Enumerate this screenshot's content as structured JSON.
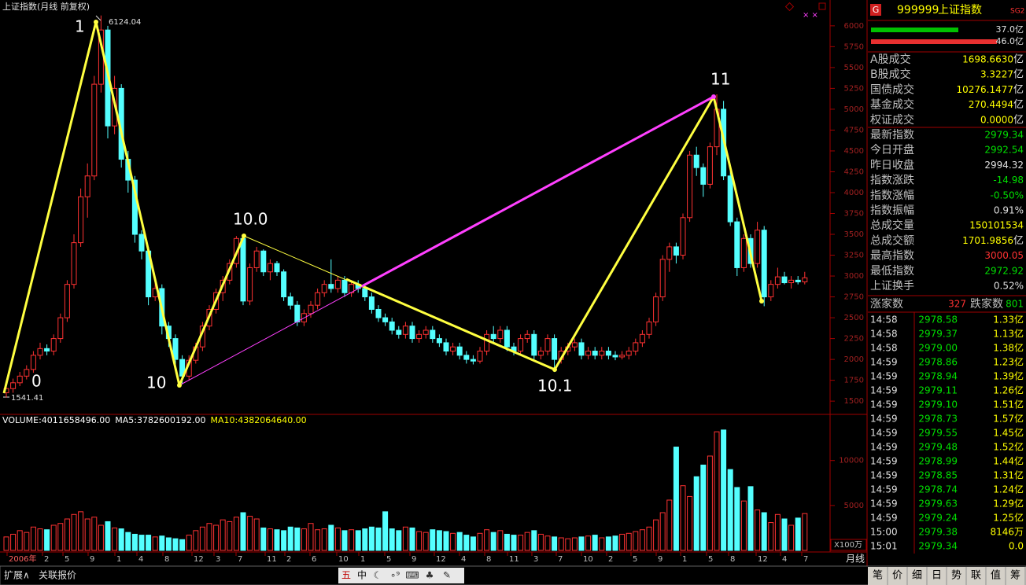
{
  "chart_data": [
    {
      "type": "candlestick",
      "title": "上证指数(月线 前复权)",
      "x_labels": [
        "2006年",
        "2",
        "5",
        "9",
        "1",
        "4",
        "8",
        "12",
        "3",
        "7",
        "11",
        "2",
        "6",
        "10",
        "1",
        "5",
        "9",
        "12",
        "4",
        "8",
        "11",
        "3",
        "7",
        "10",
        "2",
        "5",
        "9",
        "1",
        "5",
        "8",
        "12",
        "4",
        "7"
      ],
      "candles": [
        [
          1600,
          1700,
          1541.41,
          1650
        ],
        [
          1650,
          1770,
          1600,
          1720
        ],
        [
          1720,
          1850,
          1680,
          1800
        ],
        [
          1800,
          1930,
          1760,
          1880
        ],
        [
          1880,
          2100,
          1840,
          2050
        ],
        [
          2050,
          2200,
          2000,
          2130
        ],
        [
          2130,
          2180,
          2050,
          2100
        ],
        [
          2100,
          2300,
          2050,
          2250
        ],
        [
          2250,
          2550,
          2200,
          2500
        ],
        [
          2500,
          2950,
          2450,
          2900
        ],
        [
          2900,
          3500,
          2850,
          3400
        ],
        [
          3400,
          4050,
          3350,
          3950
        ],
        [
          3950,
          4350,
          3700,
          4200
        ],
        [
          4200,
          5400,
          4150,
          5300
        ],
        [
          5300,
          6124.04,
          5200,
          5950
        ],
        [
          5950,
          6000,
          4650,
          4800
        ],
        [
          4800,
          5400,
          4700,
          5250
        ],
        [
          5250,
          5300,
          4300,
          4400
        ],
        [
          4400,
          4500,
          4000,
          4150
        ],
        [
          4150,
          4200,
          3400,
          3500
        ],
        [
          3500,
          3550,
          3200,
          3300
        ],
        [
          3300,
          3350,
          2650,
          2750
        ],
        [
          2750,
          2950,
          2700,
          2850
        ],
        [
          2850,
          2900,
          2300,
          2400
        ],
        [
          2400,
          2450,
          2150,
          2250
        ],
        [
          2250,
          2300,
          1900,
          2000
        ],
        [
          2000,
          2050,
          1700,
          1800
        ],
        [
          1800,
          2050,
          1750,
          1990
        ],
        [
          1990,
          2200,
          1950,
          2150
        ],
        [
          2150,
          2450,
          2100,
          2400
        ],
        [
          2400,
          2650,
          2350,
          2600
        ],
        [
          2600,
          2850,
          2550,
          2800
        ],
        [
          2800,
          3000,
          2700,
          2950
        ],
        [
          2950,
          3200,
          2900,
          3150
        ],
        [
          3150,
          3480,
          3100,
          3450
        ],
        [
          3450,
          3460,
          2650,
          2700
        ],
        [
          2700,
          3150,
          2650,
          3100
        ],
        [
          3100,
          3350,
          3050,
          3300
        ],
        [
          3300,
          3320,
          3000,
          3050
        ],
        [
          3050,
          3200,
          2950,
          3150
        ],
        [
          3150,
          3180,
          3000,
          3050
        ],
        [
          3050,
          3080,
          2700,
          2750
        ],
        [
          2750,
          2800,
          2600,
          2650
        ],
        [
          2650,
          2700,
          2400,
          2450
        ],
        [
          2450,
          2600,
          2400,
          2550
        ],
        [
          2550,
          2700,
          2500,
          2650
        ],
        [
          2650,
          2850,
          2600,
          2800
        ],
        [
          2800,
          2950,
          2750,
          2900
        ],
        [
          2900,
          3200,
          2800,
          2850
        ],
        [
          2850,
          3000,
          2800,
          2950
        ],
        [
          2950,
          3000,
          2750,
          2800
        ],
        [
          2800,
          2950,
          2750,
          2900
        ],
        [
          2900,
          2950,
          2800,
          2850
        ],
        [
          2850,
          2900,
          2700,
          2750
        ],
        [
          2750,
          2800,
          2550,
          2600
        ],
        [
          2600,
          2650,
          2450,
          2500
        ],
        [
          2500,
          2550,
          2400,
          2450
        ],
        [
          2450,
          2500,
          2300,
          2350
        ],
        [
          2350,
          2400,
          2250,
          2300
        ],
        [
          2300,
          2450,
          2250,
          2400
        ],
        [
          2400,
          2450,
          2200,
          2250
        ],
        [
          2250,
          2350,
          2200,
          2300
        ],
        [
          2300,
          2400,
          2250,
          2350
        ],
        [
          2350,
          2400,
          2200,
          2250
        ],
        [
          2250,
          2300,
          2150,
          2200
        ],
        [
          2200,
          2250,
          2050,
          2100
        ],
        [
          2100,
          2200,
          2050,
          2150
        ],
        [
          2150,
          2200,
          2000,
          2050
        ],
        [
          2050,
          2100,
          1950,
          2000
        ],
        [
          2000,
          2050,
          1940,
          1980
        ],
        [
          1980,
          2150,
          1950,
          2100
        ],
        [
          2100,
          2350,
          2050,
          2300
        ],
        [
          2300,
          2400,
          2200,
          2250
        ],
        [
          2250,
          2400,
          2200,
          2350
        ],
        [
          2350,
          2400,
          2100,
          2150
        ],
        [
          2150,
          2200,
          2050,
          2100
        ],
        [
          2100,
          2300,
          2050,
          2250
        ],
        [
          2250,
          2350,
          2200,
          2300
        ],
        [
          2300,
          2350,
          2000,
          2050
        ],
        [
          2050,
          2150,
          2000,
          2100
        ],
        [
          2100,
          2300,
          2050,
          2250
        ],
        [
          2250,
          2300,
          1849,
          2000
        ],
        [
          2000,
          2150,
          1950,
          2100
        ],
        [
          2100,
          2200,
          2050,
          2150
        ],
        [
          2150,
          2250,
          2100,
          2200
        ],
        [
          2200,
          2250,
          2000,
          2050
        ],
        [
          2050,
          2150,
          2000,
          2100
        ],
        [
          2100,
          2150,
          2000,
          2050
        ],
        [
          2050,
          2150,
          2000,
          2100
        ],
        [
          2100,
          2150,
          2000,
          2050
        ],
        [
          2050,
          2100,
          1990,
          2030
        ],
        [
          2030,
          2100,
          2000,
          2050
        ],
        [
          2050,
          2150,
          2000,
          2100
        ],
        [
          2100,
          2250,
          2050,
          2200
        ],
        [
          2200,
          2350,
          2150,
          2300
        ],
        [
          2300,
          2500,
          2250,
          2450
        ],
        [
          2450,
          2800,
          2400,
          2750
        ],
        [
          2750,
          3250,
          2700,
          3200
        ],
        [
          3200,
          3400,
          3050,
          3350
        ],
        [
          3350,
          3400,
          3150,
          3250
        ],
        [
          3250,
          3750,
          3200,
          3700
        ],
        [
          3700,
          4500,
          3650,
          4450
        ],
        [
          4450,
          4550,
          4200,
          4300
        ],
        [
          4300,
          4350,
          3950,
          4100
        ],
        [
          4100,
          4600,
          4050,
          4550
        ],
        [
          4550,
          5178,
          4450,
          5000
        ],
        [
          5000,
          5100,
          4150,
          4200
        ],
        [
          4200,
          4300,
          3600,
          3650
        ],
        [
          3650,
          3700,
          3000,
          3100
        ],
        [
          3100,
          3500,
          3050,
          3450
        ],
        [
          3450,
          3500,
          3100,
          3150
        ],
        [
          3150,
          3650,
          3100,
          3550
        ],
        [
          3550,
          3600,
          2638,
          2750
        ],
        [
          2750,
          2950,
          2700,
          2900
        ],
        [
          2900,
          3100,
          2850,
          2990
        ],
        [
          2990,
          3050,
          2900,
          2920
        ],
        [
          2920,
          3000,
          2850,
          2950
        ],
        [
          2950,
          3000,
          2900,
          2930
        ],
        [
          2930,
          3050,
          2900,
          2979
        ]
      ],
      "up_color": "#ff3232",
      "down_color": "#54ffff",
      "ylim": [
        1360,
        6140
      ],
      "yticks": [
        1500,
        1750,
        2000,
        2250,
        2500,
        2750,
        3000,
        3250,
        3500,
        3750,
        4000,
        4250,
        4500,
        4750,
        5000,
        5250,
        5500,
        5750,
        6000
      ],
      "annotations": [
        "0",
        "1",
        "10",
        "10.0",
        "10.1",
        "11"
      ],
      "high_label": 6124.04,
      "low_label": 1541.41,
      "period": "月线"
    },
    {
      "type": "volume",
      "header": [
        {
          "label": "VOLUME: ",
          "value": "4011658496.00",
          "color": "#ffffff"
        },
        {
          "label": "MA5: ",
          "value": "3782600192.00",
          "color": "#ffffff"
        },
        {
          "label": "MA10: ",
          "value": "4382064640.00",
          "color": "#ffff00"
        }
      ],
      "values": [
        1500,
        1800,
        2200,
        2000,
        2600,
        2400,
        2300,
        2800,
        3000,
        3500,
        4000,
        4300,
        3500,
        3700,
        2800,
        3200,
        2500,
        2400,
        2000,
        1800,
        1700,
        1700,
        1500,
        1600,
        1400,
        1300,
        1200,
        1700,
        2200,
        2600,
        3000,
        2800,
        3400,
        3200,
        3700,
        4200,
        3800,
        3500,
        2500,
        2400,
        2300,
        2200,
        2600,
        2500,
        2400,
        3000,
        2300,
        2400,
        2800,
        2500,
        2200,
        2300,
        2200,
        2400,
        2600,
        2500,
        4300,
        2400,
        2200,
        2600,
        2500,
        2100,
        2000,
        2300,
        2200,
        2100,
        1900,
        2000,
        1700,
        1500,
        1900,
        2300,
        2000,
        2200,
        1800,
        1700,
        1700,
        2000,
        2200,
        1800,
        1600,
        1500,
        1400,
        1300,
        1400,
        1500,
        1600,
        1700,
        1400,
        1500,
        1600,
        1800,
        1900,
        2100,
        2300,
        2600,
        3400,
        4200,
        5600,
        11500,
        7200,
        6000,
        8200,
        9500,
        10500,
        13200,
        13400,
        9000,
        7000,
        5500,
        7100,
        4500,
        4200,
        3100,
        4000,
        3500,
        2800,
        3600,
        4100
      ],
      "ylim": [
        0,
        14000
      ],
      "yticks": [
        5000,
        10000
      ],
      "unit_label": "X100万"
    }
  ],
  "panel": {
    "badge": "G",
    "code": "999999",
    "name": "上证指数",
    "tag": "SG2",
    "bars": [
      {
        "value": "37.0",
        "unit": "亿",
        "color": "#00c000"
      },
      {
        "value": "46.0",
        "unit": "亿",
        "color": "#e83030"
      }
    ],
    "turnover": [
      {
        "label": "A股成交",
        "value": "1698.6630",
        "unit": "亿"
      },
      {
        "label": "B股成交",
        "value": "3.3227",
        "unit": "亿"
      },
      {
        "label": "国债成交",
        "value": "10276.1477",
        "unit": "亿"
      },
      {
        "label": "基金成交",
        "value": "270.4494",
        "unit": "亿"
      },
      {
        "label": "权证成交",
        "value": "0.0000",
        "unit": "亿"
      }
    ],
    "stats": [
      {
        "label": "最新指数",
        "value": "2979.34",
        "color": "#00e000"
      },
      {
        "label": "今日开盘",
        "value": "2992.54",
        "color": "#00e000"
      },
      {
        "label": "昨日收盘",
        "value": "2994.32",
        "color": "#e0e0e0"
      },
      {
        "label": "指数涨跌",
        "value": "-14.98",
        "color": "#00e000"
      },
      {
        "label": "指数涨幅",
        "value": "-0.50%",
        "color": "#00e000"
      },
      {
        "label": "指数振幅",
        "value": "0.91%",
        "color": "#e0e0e0"
      },
      {
        "label": "总成交量",
        "value": "150101534",
        "color": "#ffff00"
      },
      {
        "label": "总成交额",
        "value": "1701.9856",
        "unit": "亿",
        "color": "#ffff00"
      },
      {
        "label": "最高指数",
        "value": "3000.05",
        "color": "#ff3232"
      },
      {
        "label": "最低指数",
        "value": "2972.92",
        "color": "#00e000"
      },
      {
        "label": "上证换手",
        "value": "0.52%",
        "color": "#e0e0e0"
      }
    ],
    "breadth": {
      "up_label": "涨家数",
      "up": 327,
      "down_label": "跌家数",
      "down": 801
    },
    "ticks": [
      [
        "14:58",
        "2978.58",
        "1.33亿"
      ],
      [
        "14:58",
        "2979.37",
        "1.13亿"
      ],
      [
        "14:58",
        "2979.00",
        "1.38亿"
      ],
      [
        "14:59",
        "2978.86",
        "1.23亿"
      ],
      [
        "14:59",
        "2978.94",
        "1.39亿"
      ],
      [
        "14:59",
        "2979.11",
        "1.26亿"
      ],
      [
        "14:59",
        "2979.10",
        "1.51亿"
      ],
      [
        "14:59",
        "2978.73",
        "1.57亿"
      ],
      [
        "14:59",
        "2979.55",
        "1.45亿"
      ],
      [
        "14:59",
        "2979.48",
        "1.52亿"
      ],
      [
        "14:59",
        "2978.99",
        "1.44亿"
      ],
      [
        "14:59",
        "2978.85",
        "1.31亿"
      ],
      [
        "14:59",
        "2978.74",
        "1.24亿"
      ],
      [
        "14:59",
        "2979.63",
        "1.29亿"
      ],
      [
        "14:59",
        "2979.24",
        "1.25亿"
      ],
      [
        "15:00",
        "2979.38",
        "8146万"
      ],
      [
        "15:01",
        "2979.34",
        "0.0"
      ]
    ]
  },
  "bottom": {
    "left": [
      "扩展∧",
      "关联报价"
    ],
    "tools": [
      "五",
      "中"
    ],
    "tabs": [
      "笔",
      "价",
      "细",
      "日",
      "势",
      "联",
      "值",
      "筹"
    ]
  }
}
